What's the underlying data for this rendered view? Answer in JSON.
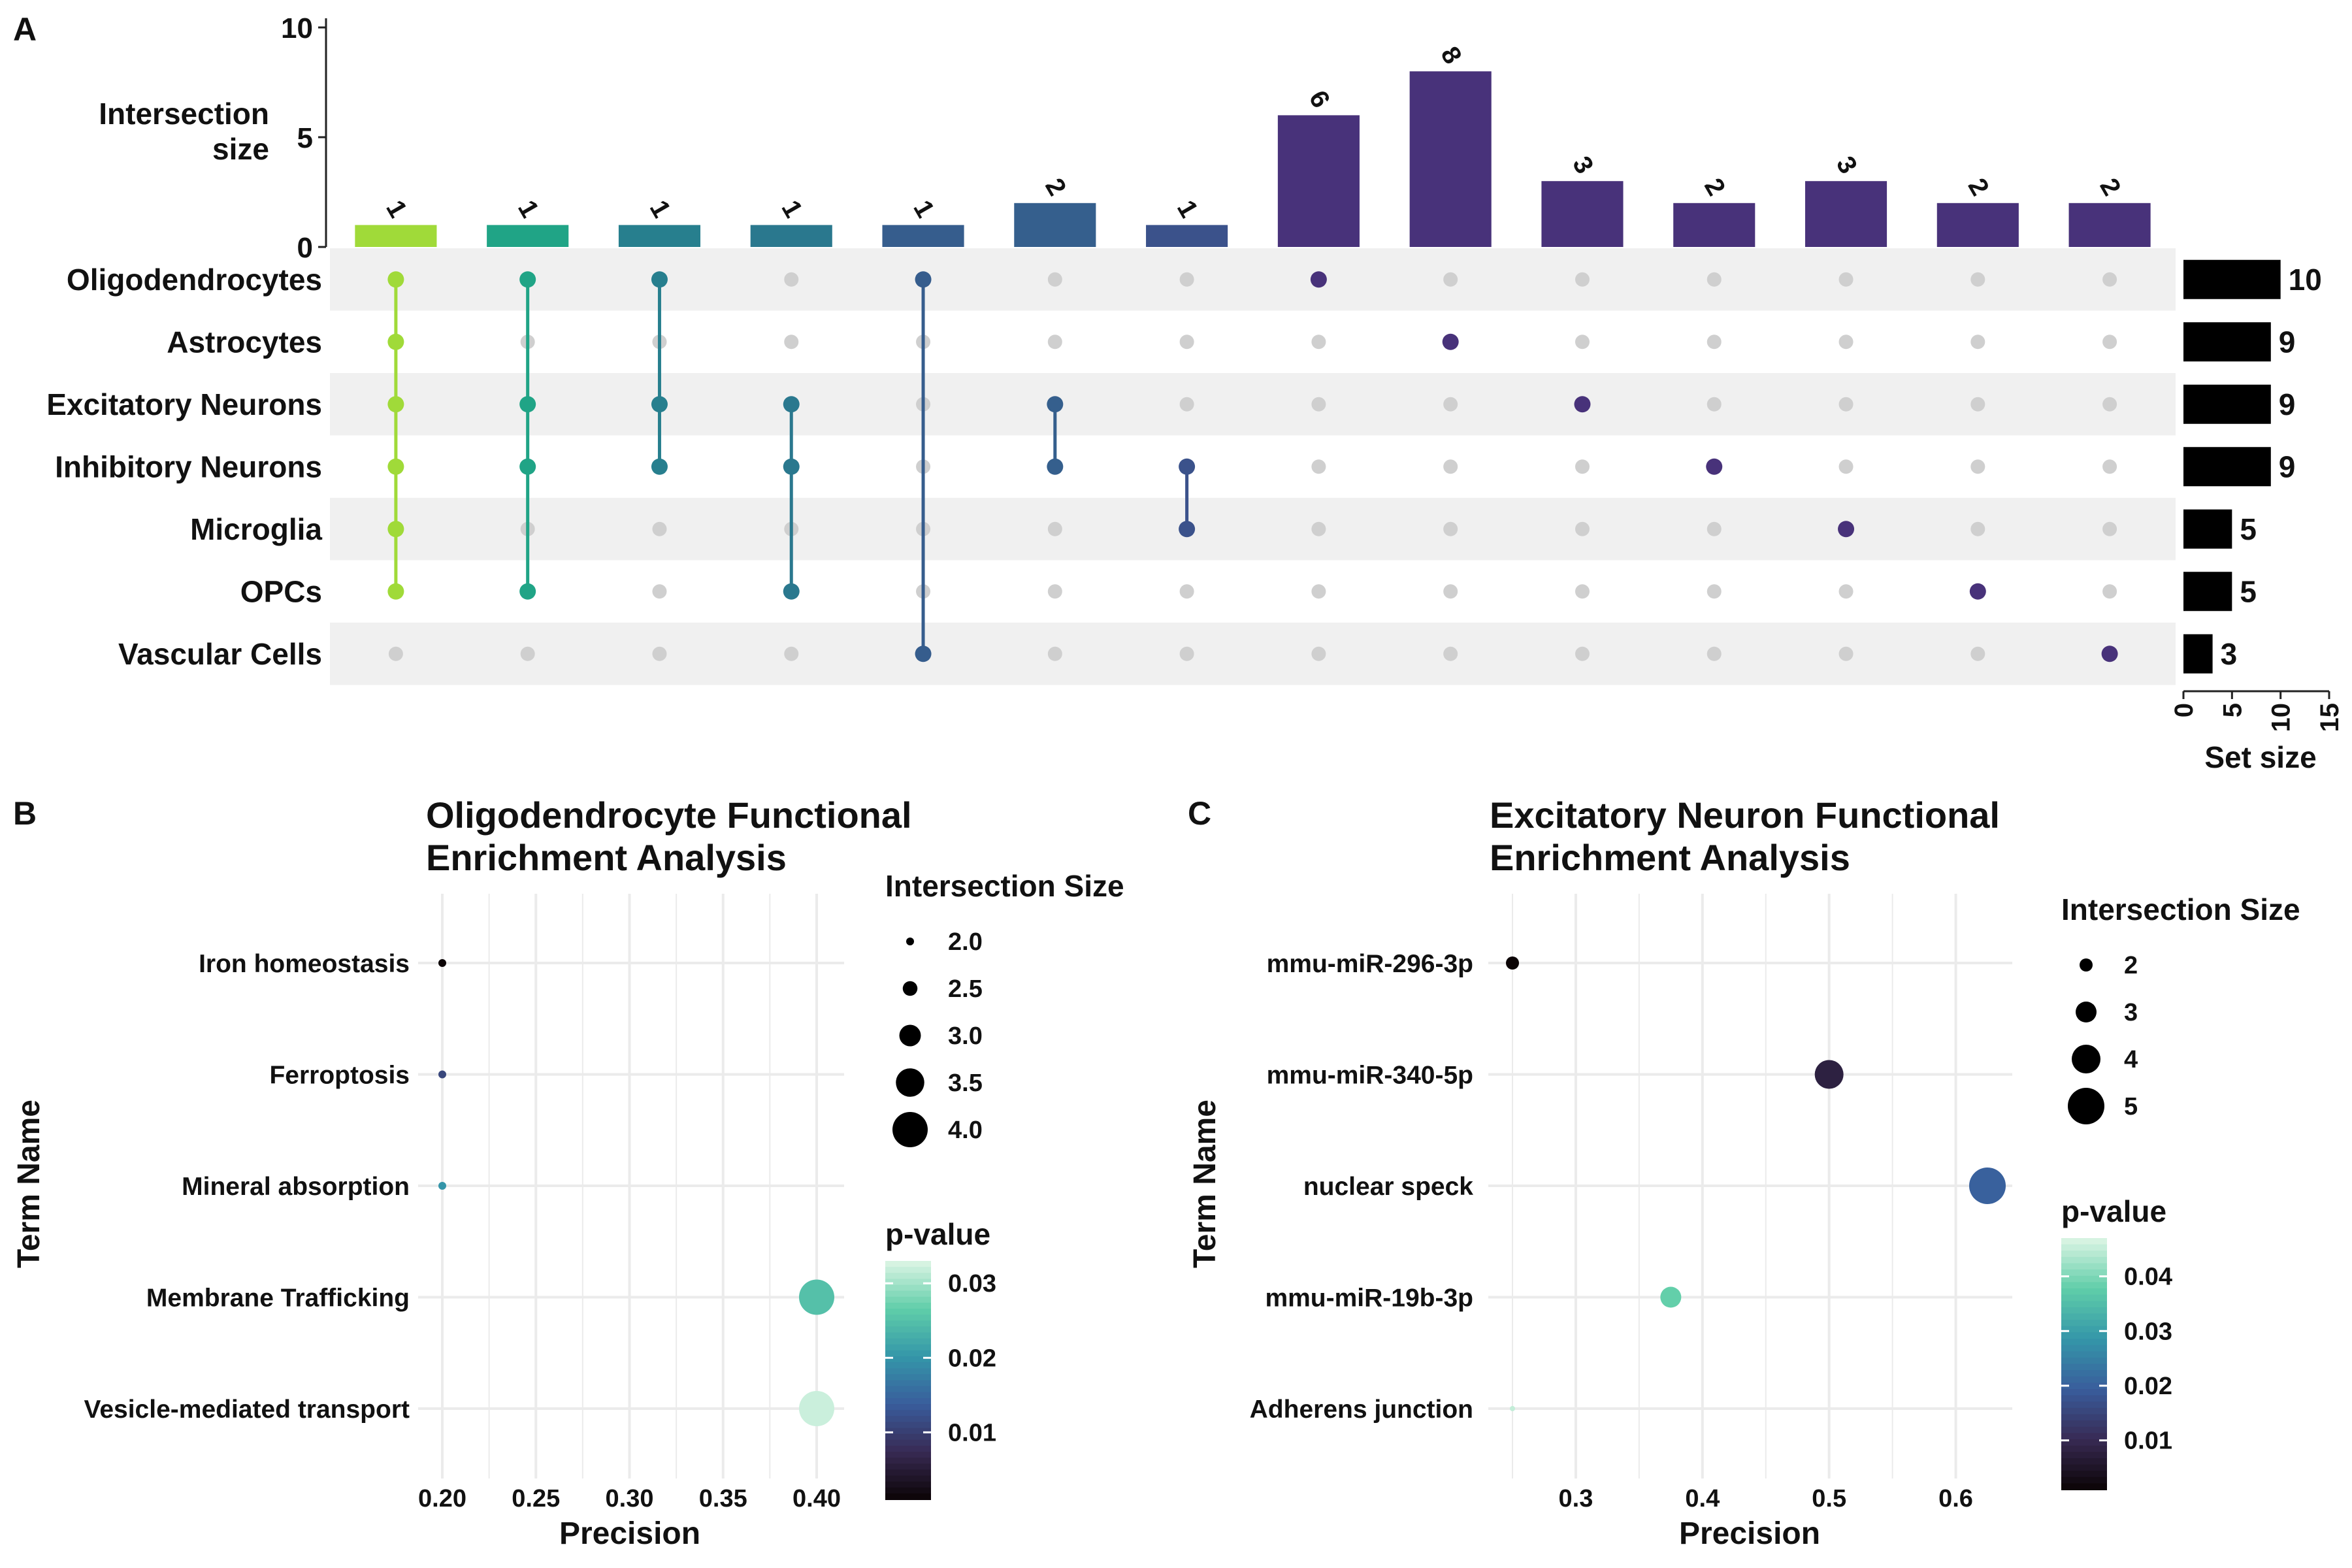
{
  "panels": {
    "a_letter": "A",
    "b_letter": "B",
    "c_letter": "C"
  },
  "chart_data": [
    {
      "type": "bar",
      "subtype": "upset",
      "ylabel_line1": "Intersection",
      "ylabel_line2": "size",
      "ylim": [
        0,
        10
      ],
      "yticks": [
        "0",
        "5",
        "10"
      ],
      "sets": [
        "Oligodendrocytes",
        "Astrocytes",
        "Excitatory Neurons",
        "Inhibitory Neurons",
        "Microglia",
        "OPCs",
        "Vascular Cells"
      ],
      "set_sizes": [
        10,
        9,
        9,
        9,
        5,
        5,
        3
      ],
      "set_size_label": "Set size",
      "set_size_xlim": [
        0,
        15
      ],
      "set_size_ticks": [
        "0",
        "5",
        "10",
        "15"
      ],
      "intersections": [
        {
          "size": 1,
          "sets": [
            "Oligodendrocytes",
            "Astrocytes",
            "Excitatory Neurons",
            "Inhibitory Neurons",
            "Microglia",
            "OPCs"
          ],
          "color": "#a0da39"
        },
        {
          "size": 1,
          "sets": [
            "Oligodendrocytes",
            "Excitatory Neurons",
            "Inhibitory Neurons",
            "OPCs"
          ],
          "color": "#20a486"
        },
        {
          "size": 1,
          "sets": [
            "Oligodendrocytes",
            "Excitatory Neurons",
            "Inhibitory Neurons"
          ],
          "color": "#277f8e"
        },
        {
          "size": 1,
          "sets": [
            "Excitatory Neurons",
            "Inhibitory Neurons",
            "OPCs"
          ],
          "color": "#2a788e"
        },
        {
          "size": 1,
          "sets": [
            "Oligodendrocytes",
            "Vascular Cells"
          ],
          "color": "#365d8d"
        },
        {
          "size": 2,
          "sets": [
            "Excitatory Neurons",
            "Inhibitory Neurons"
          ],
          "color": "#355f8d"
        },
        {
          "size": 1,
          "sets": [
            "Inhibitory Neurons",
            "Microglia"
          ],
          "color": "#3b528b"
        },
        {
          "size": 6,
          "sets": [
            "Oligodendrocytes"
          ],
          "color": "#48327a"
        },
        {
          "size": 8,
          "sets": [
            "Astrocytes"
          ],
          "color": "#48327a"
        },
        {
          "size": 3,
          "sets": [
            "Excitatory Neurons"
          ],
          "color": "#48327a"
        },
        {
          "size": 2,
          "sets": [
            "Inhibitory Neurons"
          ],
          "color": "#48327a"
        },
        {
          "size": 3,
          "sets": [
            "Microglia"
          ],
          "color": "#48327a"
        },
        {
          "size": 2,
          "sets": [
            "OPCs"
          ],
          "color": "#48327a"
        },
        {
          "size": 2,
          "sets": [
            "Vascular Cells"
          ],
          "color": "#48327a"
        }
      ]
    },
    {
      "type": "scatter",
      "title_line1": "Oligodendrocyte Functional",
      "title_line2": "Enrichment Analysis",
      "xlabel": "Precision",
      "ylabel": "Term Name",
      "xlim": [
        0.2,
        0.4
      ],
      "xticks": [
        0.2,
        0.25,
        0.3,
        0.35,
        0.4
      ],
      "xtick_labels": [
        "0.20",
        "0.25",
        "0.30",
        "0.35",
        "0.40"
      ],
      "terms": [
        "Iron homeostasis",
        "Ferroptosis",
        "Mineral absorption",
        "Membrane Trafficking",
        "Vesicle-mediated transport"
      ],
      "points": [
        {
          "term": "Iron homeostasis",
          "precision": 0.2,
          "intersection_size": 2,
          "p_value": 0.001
        },
        {
          "term": "Ferroptosis",
          "precision": 0.2,
          "intersection_size": 2,
          "p_value": 0.011
        },
        {
          "term": "Mineral absorption",
          "precision": 0.2,
          "intersection_size": 2,
          "p_value": 0.02
        },
        {
          "term": "Membrane Trafficking",
          "precision": 0.4,
          "intersection_size": 4,
          "p_value": 0.025
        },
        {
          "term": "Vesicle-mediated transport",
          "precision": 0.4,
          "intersection_size": 4,
          "p_value": 0.032
        }
      ],
      "size_legend_title": "Intersection Size",
      "size_legend": [
        2.0,
        2.5,
        3.0,
        3.5,
        4.0
      ],
      "size_legend_labels": [
        "2.0",
        "2.5",
        "3.0",
        "3.5",
        "4.0"
      ],
      "size_range": [
        2,
        4
      ],
      "color_legend_title": "p-value",
      "color_range": [
        0.001,
        0.033
      ],
      "color_ticks": [
        0.01,
        0.02,
        0.03
      ],
      "color_tick_labels": [
        "0.01",
        "0.02",
        "0.03"
      ],
      "colorscale": [
        "#0b0405",
        "#382a54",
        "#395d9c",
        "#3497a9",
        "#60cea9",
        "#def5e5"
      ]
    },
    {
      "type": "scatter",
      "title_line1": "Excitatory Neuron Functional",
      "title_line2": "Enrichment Analysis",
      "xlabel": "Precision",
      "ylabel": "Term Name",
      "xlim": [
        0.25,
        0.625
      ],
      "xticks": [
        0.3,
        0.4,
        0.5,
        0.6
      ],
      "xtick_labels": [
        "0.3",
        "0.4",
        "0.5",
        "0.6"
      ],
      "terms": [
        "mmu-miR-296-3p",
        "mmu-miR-340-5p",
        "nuclear speck",
        "mmu-miR-19b-3p",
        "Adherens junction"
      ],
      "points": [
        {
          "term": "mmu-miR-296-3p",
          "precision": 0.25,
          "intersection_size": 2,
          "p_value": 0.001
        },
        {
          "term": "mmu-miR-340-5p",
          "precision": 0.5,
          "intersection_size": 4,
          "p_value": 0.008
        },
        {
          "term": "nuclear speck",
          "precision": 0.625,
          "intersection_size": 5,
          "p_value": 0.02
        },
        {
          "term": "mmu-miR-19b-3p",
          "precision": 0.375,
          "intersection_size": 3,
          "p_value": 0.038
        },
        {
          "term": "Adherens junction",
          "precision": 0.25,
          "intersection_size": 1,
          "p_value": 0.045
        }
      ],
      "size_legend_title": "Intersection Size",
      "size_legend": [
        2,
        3,
        4,
        5
      ],
      "size_legend_labels": [
        "2",
        "3",
        "4",
        "5"
      ],
      "size_range": [
        1,
        5
      ],
      "color_legend_title": "p-value",
      "color_range": [
        0.001,
        0.047
      ],
      "color_ticks": [
        0.01,
        0.02,
        0.03,
        0.04
      ],
      "color_tick_labels": [
        "0.01",
        "0.02",
        "0.03",
        "0.04"
      ],
      "colorscale": [
        "#0b0405",
        "#382a54",
        "#395d9c",
        "#3497a9",
        "#60cea9",
        "#def5e5"
      ]
    }
  ]
}
